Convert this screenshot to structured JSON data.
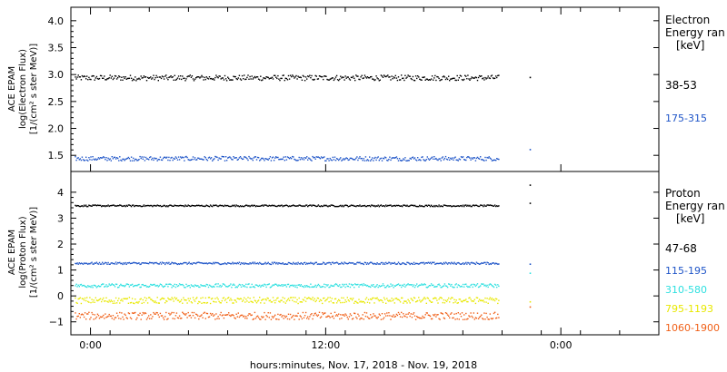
{
  "chart_data": [
    {
      "type": "scatter",
      "ylabel_lines": [
        "ACE EPAM",
        "log(Electron Flux)",
        "[1/(cm² s ster MeV)]"
      ],
      "ylim": [
        1.2,
        4.25
      ],
      "yticks": [
        1.5,
        2.0,
        2.5,
        3.0,
        3.5,
        4.0
      ],
      "ytick_labels": [
        "1.5",
        "2.0",
        "2.5",
        "3.0",
        "3.5",
        "4.0"
      ],
      "legend_title_lines": [
        "Electron",
        "Energy ran",
        "[keV]"
      ],
      "series": [
        {
          "name": "38-53",
          "color": "#000000",
          "level": 2.95,
          "noise": 0.05,
          "points": [
            [
              1.6,
              2.96
            ],
            [
              0.0,
              2.95
            ]
          ]
        },
        {
          "name": "175-315",
          "color": "#1f55c8",
          "level": 1.45,
          "noise": 0.04,
          "points": [
            [
              1.6,
              1.62
            ],
            [
              0.0,
              1.45
            ]
          ]
        }
      ]
    },
    {
      "type": "scatter",
      "ylabel_lines": [
        "ACE EPAM",
        "log(Proton Flux)",
        "[1/(cm² s ster MeV)]"
      ],
      "ylim": [
        -1.5,
        4.8
      ],
      "yticks": [
        -1,
        0,
        1,
        2,
        3,
        4
      ],
      "ytick_labels": [
        "−1",
        "0",
        "1",
        "2",
        "3",
        "4"
      ],
      "legend_title_lines": [
        "Proton",
        "Energy ran",
        "[keV]"
      ],
      "series": [
        {
          "name": "47-68",
          "color": "#000000",
          "level": 3.5,
          "noise": 0.03,
          "points": [
            [
              1.0,
              4.3
            ],
            [
              1.4,
              3.6
            ]
          ]
        },
        {
          "name": "115-195",
          "color": "#1f55c8",
          "level": 1.28,
          "noise": 0.04,
          "points": [
            [
              1.0,
              1.25
            ]
          ]
        },
        {
          "name": "310-580",
          "color": "#2ee0e0",
          "level": 0.42,
          "noise": 0.07,
          "points": [
            [
              1.0,
              0.9
            ]
          ]
        },
        {
          "name": "795-1193",
          "color": "#e8e800",
          "level": -0.15,
          "noise": 0.12,
          "points": [
            [
              1.0,
              -0.2
            ]
          ]
        },
        {
          "name": "1060-1900",
          "color": "#f06018",
          "level": -0.75,
          "noise": 0.14,
          "points": [
            [
              1.0,
              -0.4
            ]
          ]
        }
      ]
    }
  ],
  "x_axis": {
    "label": "hours:minutes, Nov. 17, 2018 - Nov. 19, 2018",
    "tick_labels": [
      "0:00",
      "12:00",
      "0:00"
    ],
    "major_tick_hours": [
      0,
      12,
      24
    ],
    "range_hours": [
      -1,
      29
    ],
    "data_end_hour": 20.8,
    "isolated_point_hour": 22.4
  },
  "colors": {
    "axis": "#000000",
    "background": "#ffffff"
  }
}
